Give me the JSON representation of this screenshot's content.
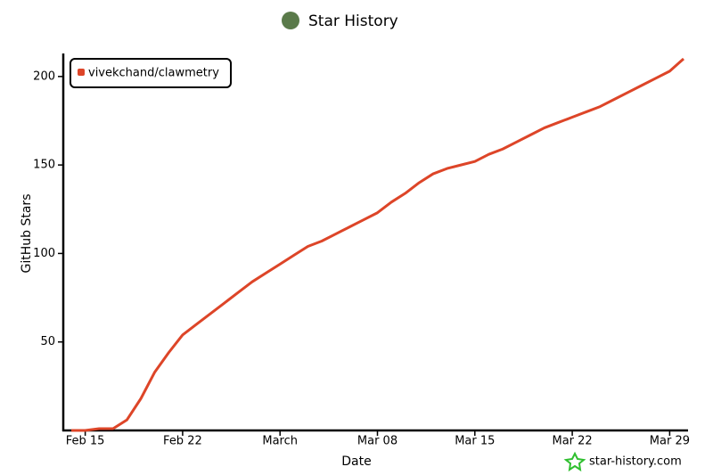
{
  "chart_data": {
    "type": "line",
    "title": "Star History",
    "x_label": "Date",
    "y_label": "GitHub Stars",
    "watermark": "star-history.com",
    "x": [
      "Feb 14",
      "Feb 15",
      "Feb 16",
      "Feb 17",
      "Feb 18",
      "Feb 19",
      "Feb 20",
      "Feb 21",
      "Feb 22",
      "Feb 23",
      "Feb 24",
      "Feb 25",
      "Feb 26",
      "Feb 27",
      "Feb 28",
      "Mar 01",
      "Mar 02",
      "Mar 03",
      "Mar 04",
      "Mar 05",
      "Mar 06",
      "Mar 07",
      "Mar 08",
      "Mar 09",
      "Mar 10",
      "Mar 11",
      "Mar 12",
      "Mar 13",
      "Mar 14",
      "Mar 15",
      "Mar 16",
      "Mar 17",
      "Mar 18",
      "Mar 19",
      "Mar 20",
      "Mar 21",
      "Mar 22",
      "Mar 23",
      "Mar 24",
      "Mar 25",
      "Mar 26",
      "Mar 27",
      "Mar 28",
      "Mar 29",
      "Mar 30"
    ],
    "series": [
      {
        "name": "vivekchand/clawmetry",
        "color": "#dd4528",
        "values": [
          0,
          0,
          1,
          1,
          6,
          18,
          33,
          44,
          54,
          60,
          66,
          72,
          78,
          84,
          89,
          94,
          99,
          104,
          107,
          111,
          115,
          119,
          123,
          129,
          134,
          140,
          145,
          148,
          150,
          152,
          156,
          159,
          163,
          167,
          171,
          174,
          177,
          180,
          183,
          187,
          191,
          195,
          199,
          203,
          210
        ]
      }
    ],
    "xticks": [
      "Feb 15",
      "Feb 22",
      {
        "value": "Mar 01",
        "label": "March"
      },
      "Mar 08",
      "Mar 15",
      "Mar 22",
      "Mar 29"
    ],
    "ylim": [
      0,
      212
    ],
    "yticks": [
      50,
      100,
      150,
      200
    ],
    "legend": "top-left"
  }
}
